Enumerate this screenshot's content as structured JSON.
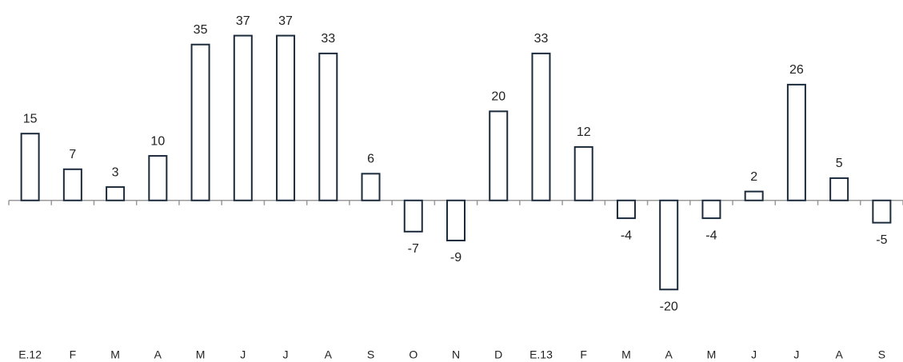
{
  "chart_data": {
    "type": "bar",
    "categories": [
      "E.12",
      "F",
      "M",
      "A",
      "M",
      "J",
      "J",
      "A",
      "S",
      "O",
      "N",
      "D",
      "E.13",
      "F",
      "M",
      "A",
      "M",
      "J",
      "J",
      "A",
      "S"
    ],
    "values": [
      15,
      7,
      3,
      10,
      35,
      37,
      37,
      33,
      6,
      -7,
      -9,
      20,
      33,
      12,
      -4,
      -20,
      -4,
      2,
      26,
      5,
      -5
    ],
    "color": "#1c2b3c",
    "ylim": [
      -30,
      45
    ]
  }
}
